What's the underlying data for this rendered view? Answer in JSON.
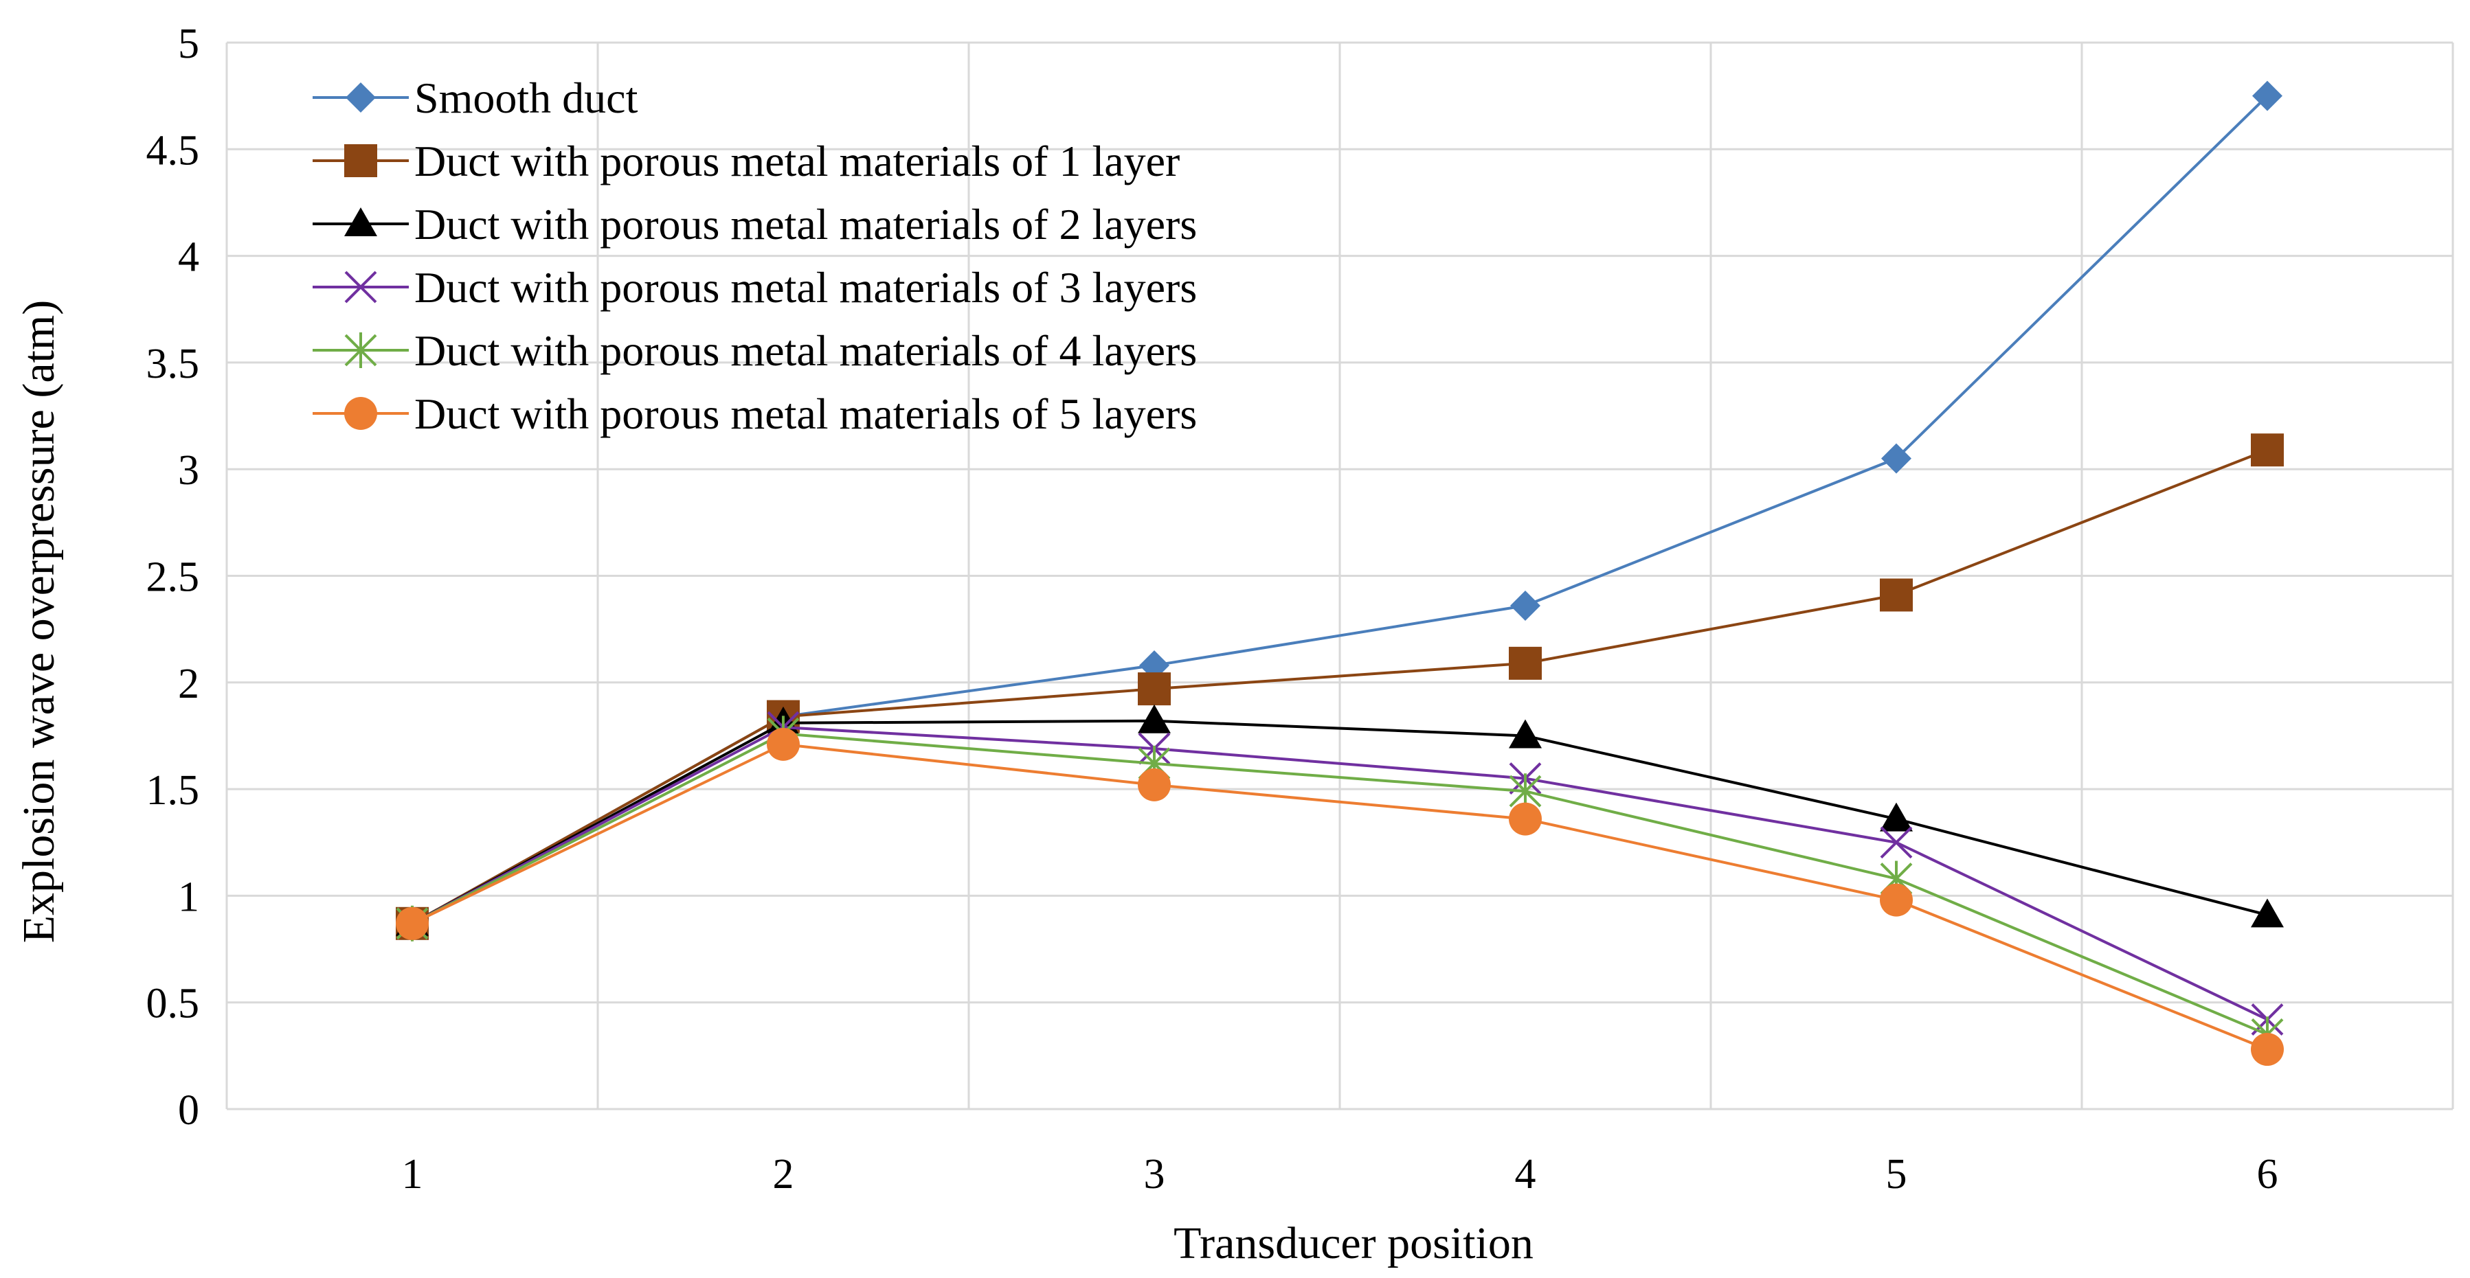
{
  "chart_data": {
    "type": "line",
    "title": "",
    "xlabel": "Transducer position",
    "ylabel": "Explosion wave overpressure (atm)",
    "categories": [
      "1",
      "2",
      "3",
      "4",
      "5",
      "6"
    ],
    "y_ticks": [
      "0",
      "0.5",
      "1",
      "1.5",
      "2",
      "2.5",
      "3",
      "3.5",
      "4",
      "4.5",
      "5"
    ],
    "ylim": [
      0,
      5
    ],
    "grid": true,
    "legend_position": "top-left",
    "series": [
      {
        "name": "Smooth duct",
        "color": "#4a7ebb",
        "marker": "diamond",
        "values": [
          0.87,
          1.84,
          2.08,
          2.36,
          3.05,
          4.75
        ]
      },
      {
        "name": "Duct with porous metal materials of 1 layer",
        "color": "#8b4513",
        "marker": "square",
        "values": [
          0.87,
          1.84,
          1.97,
          2.09,
          2.41,
          3.09
        ]
      },
      {
        "name": "Duct with porous metal materials of 2 layers",
        "color": "#000000",
        "marker": "triangle",
        "values": [
          0.87,
          1.81,
          1.82,
          1.75,
          1.36,
          0.91
        ]
      },
      {
        "name": "Duct with porous metal materials of 3 layers",
        "color": "#7030a0",
        "marker": "x",
        "values": [
          0.87,
          1.79,
          1.69,
          1.55,
          1.25,
          0.42
        ]
      },
      {
        "name": "Duct with porous metal materials of 4 layers",
        "color": "#70ad47",
        "marker": "asterisk",
        "values": [
          0.87,
          1.76,
          1.62,
          1.49,
          1.08,
          0.35
        ]
      },
      {
        "name": "Duct with porous metal materials of 5 layers",
        "color": "#ed7d31",
        "marker": "circle",
        "values": [
          0.87,
          1.71,
          1.52,
          1.36,
          0.98,
          0.28
        ]
      }
    ]
  }
}
